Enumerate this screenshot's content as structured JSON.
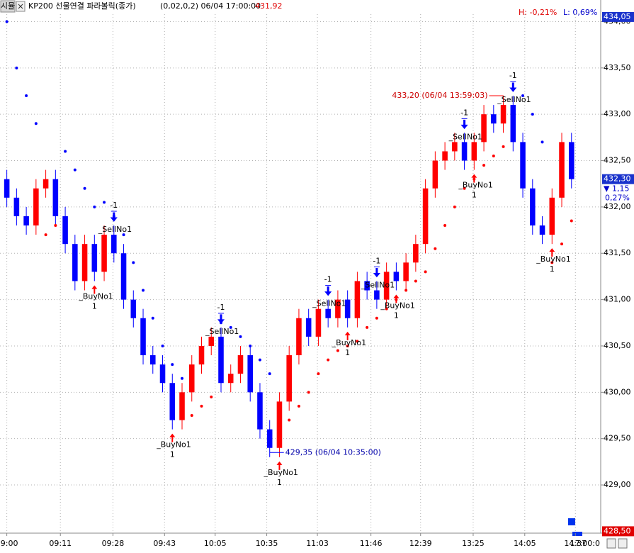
{
  "chart_data": {
    "type": "candlestick",
    "mode_button": "시뮬",
    "title": "KP200 선물연결  파라볼릭(종가)",
    "params": "(0,02,0,2) 06/04 17:00:00",
    "last_price": "431,92",
    "high_change": "H: -0,21%",
    "low_change": "L: 0,69%",
    "up_color": "#ff0000",
    "down_color": "#0000ff",
    "grid": true,
    "xlim": [
      -0.7,
      61
    ],
    "ylim": [
      428.48,
      434.08
    ],
    "yticks": [
      {
        "value": 429,
        "label": "429,00"
      },
      {
        "value": 429.5,
        "label": "429,50"
      },
      {
        "value": 430,
        "label": "430,00"
      },
      {
        "value": 430.5,
        "label": "430,50"
      },
      {
        "value": 431,
        "label": "431,00"
      },
      {
        "value": 431.5,
        "label": "431,50"
      },
      {
        "value": 432,
        "label": "432,00"
      },
      {
        "value": 432.5,
        "label": "432,50"
      },
      {
        "value": 433,
        "label": "433,00"
      },
      {
        "value": 433.5,
        "label": "433,50"
      },
      {
        "value": 434,
        "label": "434,00"
      }
    ],
    "xticks": [
      {
        "value": 0,
        "label": "09:00"
      },
      {
        "value": 5.5,
        "label": "09:11"
      },
      {
        "value": 10.9,
        "label": "09:28"
      },
      {
        "value": 16.2,
        "label": "09:43"
      },
      {
        "value": 21.4,
        "label": "10:05"
      },
      {
        "value": 26.7,
        "label": "10:35"
      },
      {
        "value": 31.9,
        "label": "11:03"
      },
      {
        "value": 37.4,
        "label": "11:46"
      },
      {
        "value": 42.5,
        "label": "12:39"
      },
      {
        "value": 47.9,
        "label": "13:25"
      },
      {
        "value": 53.2,
        "label": "14:05"
      },
      {
        "value": 58.4,
        "label": "14:37"
      }
    ],
    "end_time": "17:00:0",
    "open": [
      432.3,
      432.1,
      431.9,
      431.8,
      432.2,
      432.3,
      431.9,
      431.6,
      431.2,
      431.6,
      431.3,
      431.7,
      431.5,
      431.0,
      430.8,
      430.4,
      430.3,
      430.1,
      429.7,
      430.0,
      430.3,
      430.5,
      430.6,
      430.1,
      430.2,
      430.4,
      430.0,
      429.6,
      429.4,
      429.9,
      430.4,
      430.8,
      430.6,
      430.9,
      430.8,
      431.0,
      430.8,
      431.2,
      431.1,
      431.0,
      431.3,
      431.2,
      431.4,
      431.6,
      432.2,
      432.5,
      432.6,
      432.7,
      432.5,
      432.7,
      433.0,
      432.9,
      433.1,
      432.7,
      432.2,
      431.8,
      431.7,
      432.1,
      432.7
    ],
    "high": [
      432.4,
      432.2,
      432.0,
      432.3,
      432.4,
      432.4,
      432.0,
      431.7,
      431.7,
      431.7,
      431.8,
      431.8,
      431.6,
      431.1,
      430.9,
      430.5,
      430.4,
      430.2,
      430.1,
      430.4,
      430.6,
      430.7,
      430.7,
      430.3,
      430.5,
      430.5,
      430.1,
      429.7,
      430.0,
      430.5,
      430.9,
      430.9,
      431.0,
      431.0,
      431.1,
      431.1,
      431.3,
      431.3,
      431.2,
      431.4,
      431.4,
      431.5,
      431.7,
      432.3,
      432.6,
      432.7,
      432.8,
      432.8,
      432.8,
      433.1,
      433.1,
      433.2,
      433.2,
      432.8,
      432.3,
      431.9,
      432.2,
      432.8,
      432.8
    ],
    "low": [
      432.0,
      431.8,
      431.7,
      431.7,
      432.1,
      431.8,
      431.5,
      431.1,
      431.1,
      431.2,
      431.2,
      431.4,
      430.9,
      430.7,
      430.3,
      430.2,
      430.0,
      429.6,
      429.6,
      429.9,
      430.2,
      430.4,
      430.0,
      430.0,
      430.1,
      429.9,
      429.5,
      429.3,
      429.3,
      429.8,
      430.3,
      430.5,
      430.5,
      430.7,
      430.7,
      430.7,
      430.7,
      431.0,
      430.9,
      430.9,
      431.1,
      431.1,
      431.3,
      431.5,
      432.1,
      432.4,
      432.5,
      432.4,
      432.4,
      432.6,
      432.8,
      432.8,
      432.6,
      432.1,
      431.7,
      431.6,
      431.6,
      432.0,
      432.2
    ],
    "close": [
      432.1,
      431.9,
      431.8,
      432.2,
      432.3,
      431.9,
      431.6,
      431.2,
      431.6,
      431.3,
      431.7,
      431.5,
      431.0,
      430.8,
      430.4,
      430.3,
      430.1,
      429.7,
      430.0,
      430.3,
      430.5,
      430.6,
      430.1,
      430.2,
      430.4,
      430.0,
      429.6,
      429.4,
      429.9,
      430.4,
      430.8,
      430.6,
      430.9,
      430.8,
      431.0,
      430.8,
      431.2,
      431.1,
      431.0,
      431.3,
      431.2,
      431.4,
      431.6,
      432.2,
      432.5,
      432.6,
      432.7,
      432.5,
      432.7,
      433.0,
      432.9,
      433.1,
      432.7,
      432.2,
      431.8,
      431.7,
      432.1,
      432.7,
      432.3
    ],
    "sar": [
      434.0,
      433.5,
      433.2,
      432.9,
      431.7,
      431.8,
      432.6,
      432.4,
      432.2,
      432.0,
      432.05,
      431.9,
      431.7,
      431.4,
      431.1,
      430.8,
      430.5,
      430.3,
      430.15,
      429.75,
      429.85,
      429.95,
      430.75,
      430.7,
      430.6,
      430.5,
      430.35,
      430.2,
      429.6,
      429.7,
      429.85,
      430.0,
      430.2,
      430.35,
      430.45,
      430.5,
      430.55,
      430.7,
      430.8,
      430.9,
      431.0,
      431.1,
      431.2,
      431.3,
      431.55,
      431.8,
      432.0,
      432.2,
      432.3,
      432.45,
      432.55,
      432.65,
      432.8,
      433.2,
      433.0,
      432.7,
      431.4,
      431.6,
      431.85
    ],
    "signals": [
      {
        "side": "buy",
        "label": "_BuyNo1",
        "qty": "1",
        "at": 9
      },
      {
        "side": "sell",
        "label": "_SellNo1",
        "qty": "-1",
        "at": 11
      },
      {
        "side": "buy",
        "label": "_BuyNo1",
        "qty": "1",
        "at": 17
      },
      {
        "side": "sell",
        "label": "_SellNo1",
        "qty": "-1",
        "at": 22
      },
      {
        "side": "buy",
        "label": "_BuyNo1",
        "qty": "1",
        "at": 28
      },
      {
        "side": "sell",
        "label": "_SellNo1",
        "qty": "-1",
        "at": 33
      },
      {
        "side": "buy",
        "label": "_BuyNo1",
        "qty": "1",
        "at": 35
      },
      {
        "side": "sell",
        "label": "_SellNo1",
        "qty": "-1",
        "at": 38
      },
      {
        "side": "buy",
        "label": "_BuyNo1",
        "qty": "1",
        "at": 40
      },
      {
        "side": "sell",
        "label": "_SellNo1",
        "qty": "-1",
        "at": 47
      },
      {
        "side": "buy",
        "label": "_BuyNo1",
        "qty": "1",
        "at": 48
      },
      {
        "side": "sell",
        "label": "_SellNo1",
        "qty": "-1",
        "at": 52
      },
      {
        "side": "buy",
        "label": "_BuyNo1",
        "qty": "1",
        "at": 56
      }
    ],
    "high_note": {
      "value": 433.2,
      "label": "433,20 (06/04 13:59:03)",
      "at": 51
    },
    "low_note": {
      "value": 429.35,
      "label": "429,35 (06/04 10:35:00)",
      "at": 27
    },
    "top_marker": {
      "value": 434.05,
      "label": "434,05"
    },
    "current": {
      "value": 432.3,
      "label": "432,30"
    },
    "change": "▼ 1,15",
    "change_pct": "0,27%",
    "bottom_marker": {
      "value": 428.5,
      "label": "428,50"
    }
  }
}
